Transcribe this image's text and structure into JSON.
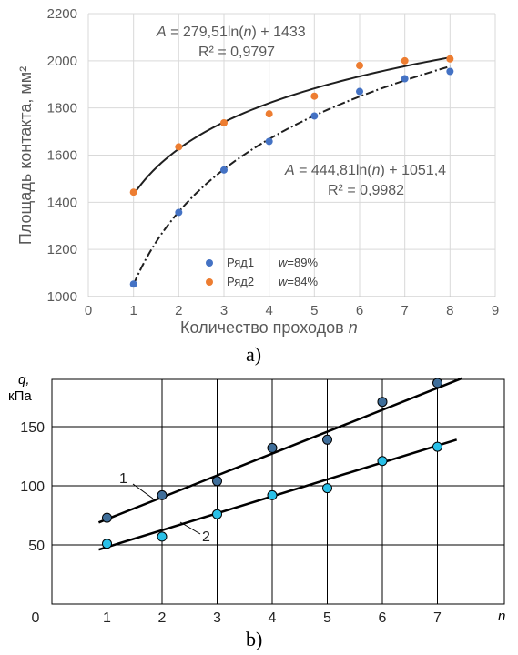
{
  "chart_data": [
    {
      "type": "scatter",
      "panel_label": "a)",
      "xlabel_text": "Количество проходов ",
      "xlabel_var": "n",
      "ylabel": "Площадь контакта, мм²",
      "xlim": [
        0,
        9
      ],
      "ylim": [
        1000,
        2200
      ],
      "xticks": [
        "0",
        "1",
        "2",
        "3",
        "4",
        "5",
        "6",
        "7",
        "8",
        "9"
      ],
      "yticks": [
        "1000",
        "1200",
        "1400",
        "1600",
        "1800",
        "2000",
        "2200"
      ],
      "grid": true,
      "legend_position": "bottom-center",
      "series": [
        {
          "name": "Ряд1",
          "color": "#4472C4",
          "note_var": "w",
          "note_val": "=89%",
          "x": [
            1,
            2,
            3,
            4,
            5,
            6,
            7,
            8
          ],
          "y": [
            1053,
            1357,
            1537,
            1658,
            1766,
            1870,
            1924,
            1955
          ],
          "trend": {
            "a": 444.81,
            "b": 1051.4,
            "style": "dash-dot",
            "color": "#1f1f1f"
          }
        },
        {
          "name": "Ряд2",
          "color": "#ED7D31",
          "note_var": "w",
          "note_val": "=84%",
          "x": [
            1,
            2,
            3,
            4,
            5,
            6,
            7,
            8
          ],
          "y": [
            1443,
            1635,
            1737,
            1775,
            1850,
            1980,
            2000,
            2008
          ],
          "trend": {
            "a": 279.51,
            "b": 1433,
            "style": "solid",
            "color": "#1f1f1f"
          }
        }
      ],
      "annotations": [
        {
          "var": "A",
          "eq": " = 279,51ln(",
          "arg": "n",
          "tail": ") + 1433",
          "r2": "R² = 0,9797"
        },
        {
          "var": "A",
          "eq": " = 444,81ln(",
          "arg": "n",
          "tail": ") + 1051,4",
          "r2": "R² = 0,9982"
        }
      ]
    },
    {
      "type": "scatter",
      "panel_label": "b)",
      "xlabel": "n",
      "ylabel_line1": "q,",
      "ylabel_line2": "кПа",
      "xlim": [
        0,
        7.5
      ],
      "ylim": [
        0,
        190
      ],
      "xticks": [
        "0",
        "1",
        "2",
        "3",
        "4",
        "5",
        "6",
        "7"
      ],
      "yticks": [
        "50",
        "100",
        "150"
      ],
      "grid": true,
      "series": [
        {
          "name": "1",
          "color": "#3f6e9a",
          "x": [
            1,
            2,
            3,
            4,
            5,
            6,
            7
          ],
          "y": [
            73,
            92,
            104,
            132,
            139,
            171,
            187
          ],
          "trend": {
            "x": [
              0.85,
              7.45
            ],
            "y": [
              69,
              191
            ]
          }
        },
        {
          "name": "2",
          "color": "#29c0e8",
          "x": [
            1,
            2,
            3,
            4,
            5,
            6,
            7
          ],
          "y": [
            51,
            57,
            76,
            92,
            98,
            121,
            133
          ],
          "trend": {
            "x": [
              0.85,
              7.35
            ],
            "y": [
              46,
              139
            ]
          }
        }
      ]
    }
  ]
}
